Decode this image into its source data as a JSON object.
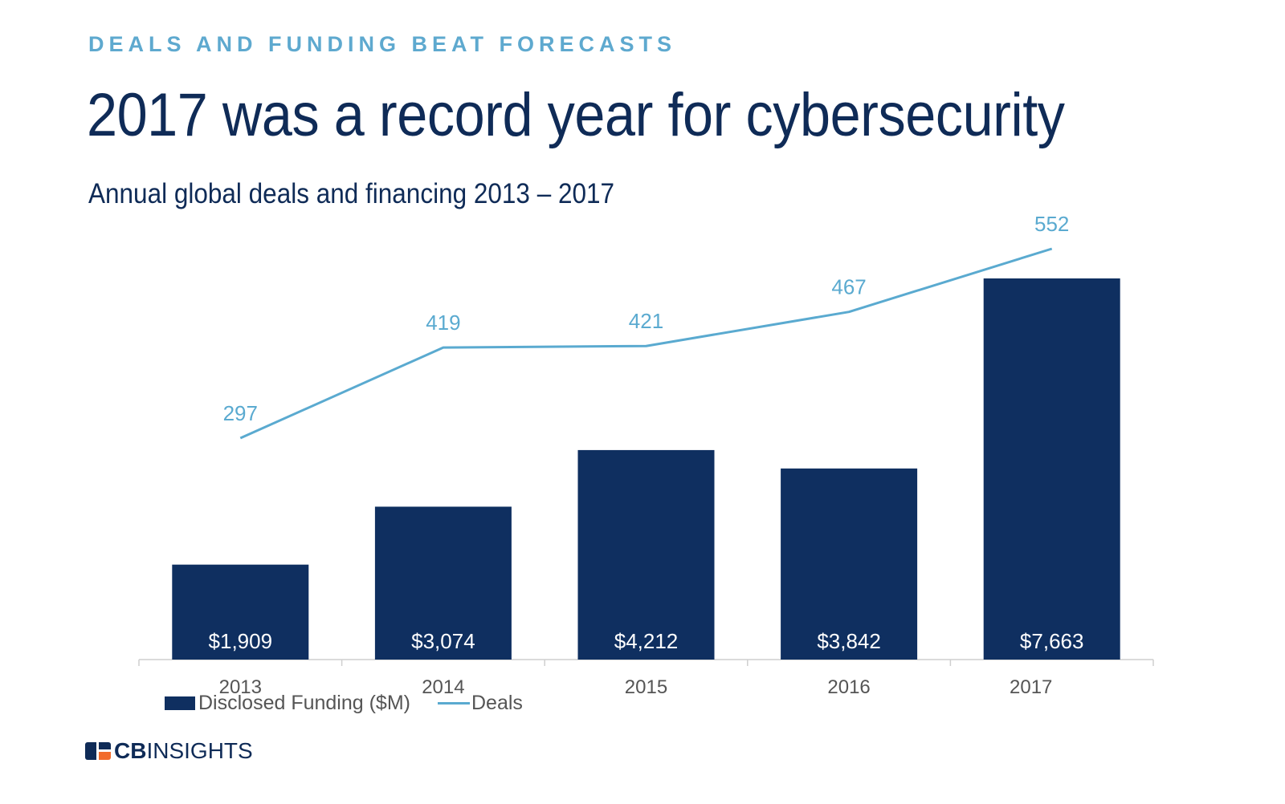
{
  "header": {
    "eyebrow": "DEALS AND FUNDING BEAT FORECASTS",
    "title": "2017 was a record year for cybersecurity",
    "subtitle": "Annual global deals and financing 2013 – 2017"
  },
  "chart_data": {
    "type": "bar",
    "categories": [
      "2013",
      "2014",
      "2015",
      "2016",
      "2017"
    ],
    "series": [
      {
        "name": "Disclosed Funding ($M)",
        "type": "bar",
        "values": [
          1909,
          3074,
          4212,
          3842,
          7663
        ],
        "labels": [
          "$1,909",
          "$3,074",
          "$4,212",
          "$3,842",
          "$7,663"
        ],
        "color": "#0f2f60"
      },
      {
        "name": "Deals",
        "type": "line",
        "values": [
          297,
          419,
          421,
          467,
          552
        ],
        "labels": [
          "297",
          "419",
          "421",
          "467",
          "552"
        ],
        "color": "#5aaad0"
      }
    ],
    "title": "Annual global deals and financing 2013 – 2017",
    "xlabel": "",
    "ylabel": "",
    "legend_position": "bottom-left",
    "grid": false
  },
  "legend": {
    "bar_label": "Disclosed Funding ($M)",
    "line_label": "Deals"
  },
  "logo": {
    "bold": "CB",
    "regular": "INSIGHTS"
  }
}
